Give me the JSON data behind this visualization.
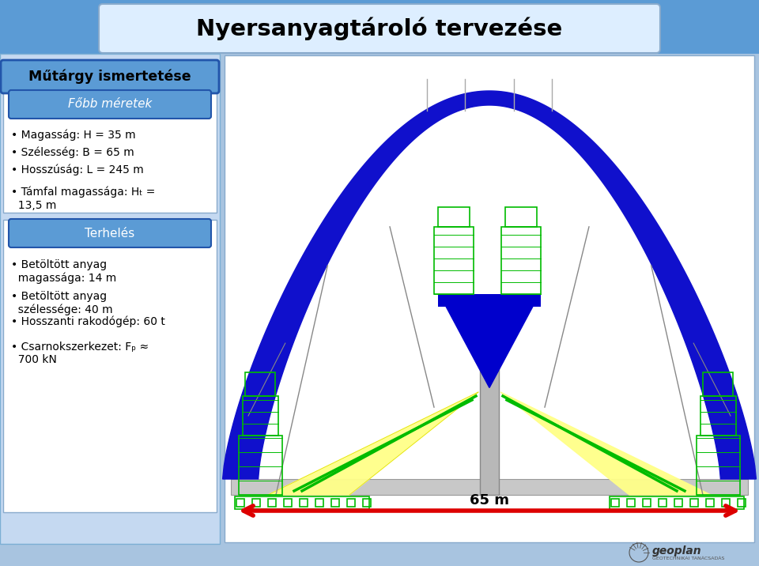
{
  "title": "Nyersanyagtároló tervezése",
  "background_color": "#a8c4e0",
  "header_bg": "#5b9bd5",
  "left_panel_bg": "#c5d9f1",
  "box_blue": "#5b9bd5",
  "white": "#ffffff",
  "box1_text": "Műtárgy ismertetése",
  "box2_text": "Főbb méretek",
  "box3_text": "Terhelés",
  "bullets_top": [
    "Magasság: H = 35 m",
    "Szélesség: B = 65 m",
    "Hosszúság: L = 245 m",
    "Támfal magassága: Hₜ =\n  13,5 m"
  ],
  "bullets_bottom": [
    "Betöltött anyag\n  magassága: 14 m",
    "Betöltött anyag\n  szélessége: 40 m",
    "Hosszanti rakodógép: 60 t",
    "Csarnokszerkezet: Fₚ ≈\n  700 kN"
  ],
  "arrow_label": "65 m",
  "arch_color": "#1010cc",
  "yellow_fill": "#ffff88",
  "green_color": "#00bb00",
  "floor_color": "#c8c8c8",
  "col_color": "#b8b8b8",
  "red_color": "#dd0000",
  "beam_color": "#0000cc",
  "cable_color": "#888888"
}
